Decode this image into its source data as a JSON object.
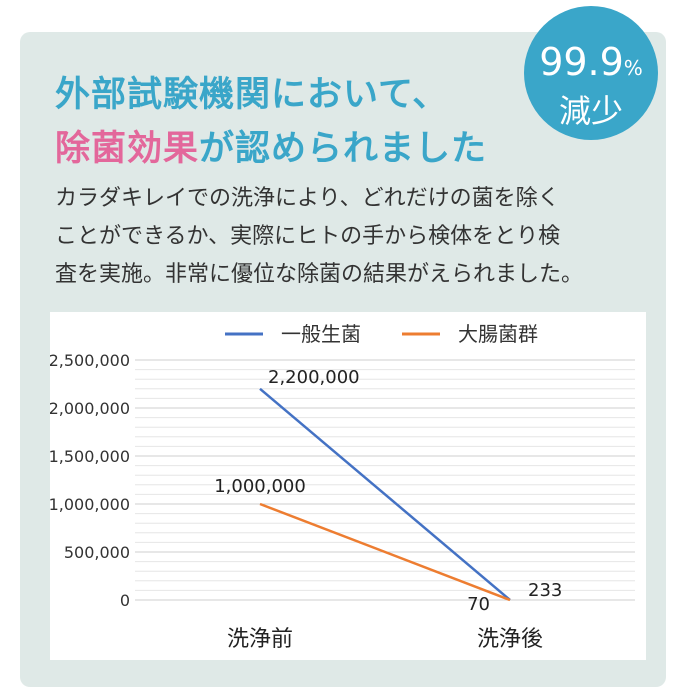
{
  "headline": {
    "line1": "外部試験機関において、",
    "line2_highlight": "除菌効果",
    "line2_rest": "が認められました"
  },
  "badge": {
    "number": "99.9",
    "unit": "%",
    "text": "減少"
  },
  "description": [
    "カラダキレイでの洗浄により、どれだけの菌を除く",
    "ことができるか、実際にヒトの手から検体をとり検",
    "査を実施。非常に優位な除菌の結果がえられました。"
  ],
  "colors": {
    "accent": "#3aa6c9",
    "highlight": "#e3679b",
    "series1": "#4472c4",
    "series2": "#ed7d31"
  },
  "chart_data": {
    "type": "line",
    "categories": [
      "洗浄前",
      "洗浄後"
    ],
    "ylim": [
      0,
      2500000
    ],
    "yticks": [
      "2,500,000",
      "2,000,000",
      "1,500,000",
      "1,000,000",
      "500,000",
      "0"
    ],
    "series": [
      {
        "name": "一般生菌",
        "values": [
          2200000,
          233
        ],
        "labels": [
          "2,200,000",
          "233"
        ]
      },
      {
        "name": "大腸菌群",
        "values": [
          1000000,
          70
        ],
        "labels": [
          "1,000,000",
          "70"
        ]
      }
    ],
    "legend": "top",
    "grid": true
  }
}
